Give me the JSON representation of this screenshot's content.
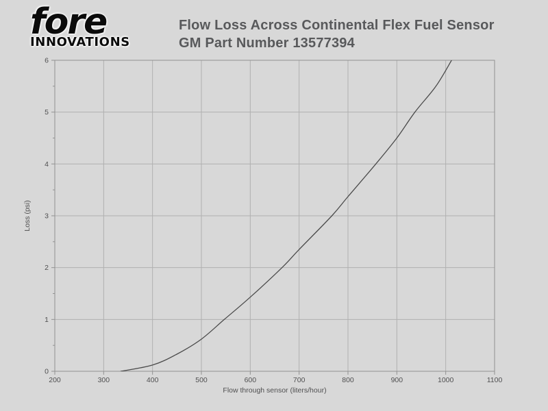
{
  "logo": {
    "wordmark": "fore",
    "subtext": "INNOVATIONS"
  },
  "title": {
    "line1": "Flow Loss Across Continental Flex Fuel Sensor",
    "line2": "GM Part Number 13577394"
  },
  "colors": {
    "background": "#d8d8d8",
    "gridline": "#b0b0b0",
    "frame": "#919191",
    "curve": "#4a4a4a",
    "tick_text": "#4f4f50",
    "title_text": "#58595b",
    "logo_text": "#0b0b0b"
  },
  "chart_data": {
    "type": "line",
    "title": "Flow Loss Across Continental Flex Fuel Sensor GM Part Number 13577394",
    "xlabel": "Flow through sensor (liters/hour)",
    "ylabel": "Loss (psi)",
    "xlim": [
      200,
      1100
    ],
    "ylim": [
      0,
      6
    ],
    "x_tick_step": 100,
    "y_tick_step": 1,
    "y_minor_tick_step": 0.5,
    "x_tick_labels": [
      "200",
      "300",
      "400",
      "500",
      "600",
      "700",
      "800",
      "900",
      "1000",
      "1100"
    ],
    "y_tick_labels": [
      "0",
      "1",
      "2",
      "3",
      "4",
      "5",
      "6"
    ],
    "grid": true,
    "legend": false,
    "series": [
      {
        "name": "Flow loss",
        "points": [
          [
            335,
            0.0
          ],
          [
            400,
            0.12
          ],
          [
            450,
            0.33
          ],
          [
            500,
            0.62
          ],
          [
            547,
            1.0
          ],
          [
            600,
            1.43
          ],
          [
            665,
            2.0
          ],
          [
            700,
            2.35
          ],
          [
            767,
            3.0
          ],
          [
            800,
            3.37
          ],
          [
            857,
            4.0
          ],
          [
            900,
            4.5
          ],
          [
            937,
            5.0
          ],
          [
            980,
            5.5
          ],
          [
            1012,
            6.0
          ]
        ]
      }
    ]
  }
}
